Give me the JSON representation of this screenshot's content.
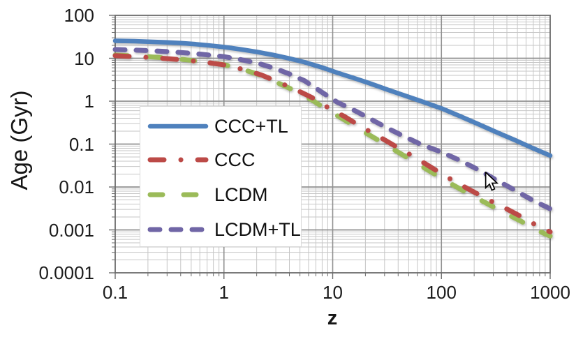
{
  "chart_data": {
    "type": "line",
    "xlabel": "z",
    "ylabel": "Age (Gyr)",
    "x_scale": "log",
    "y_scale": "log",
    "xlim": [
      0.1,
      1000
    ],
    "ylim": [
      0.0001,
      100
    ],
    "grid": "log major and minor gridlines, both axes",
    "legend_position": "upper-left inside plot",
    "x_ticks": [
      {
        "value": 0.1,
        "label": "0.1"
      },
      {
        "value": 1,
        "label": "1"
      },
      {
        "value": 10,
        "label": "10"
      },
      {
        "value": 100,
        "label": "100"
      },
      {
        "value": 1000,
        "label": "1000"
      }
    ],
    "y_ticks": [
      {
        "value": 100,
        "label": "100"
      },
      {
        "value": 10,
        "label": "10"
      },
      {
        "value": 1,
        "label": "1"
      },
      {
        "value": 0.1,
        "label": "0.1"
      },
      {
        "value": 0.01,
        "label": "0.01"
      },
      {
        "value": 0.001,
        "label": "0.001"
      },
      {
        "value": 0.0001,
        "label": "0.0001"
      }
    ],
    "series": [
      {
        "name": "CCC+TL",
        "color": "#4f81bd",
        "style": "solid",
        "dash_pattern": "",
        "points": [
          [
            0.1,
            25.5
          ],
          [
            0.15,
            25.0
          ],
          [
            0.2,
            24.4
          ],
          [
            0.3,
            23.4
          ],
          [
            0.4,
            22.5
          ],
          [
            0.55,
            21.3
          ],
          [
            0.75,
            19.8
          ],
          [
            1,
            18.3
          ],
          [
            1.4,
            16.3
          ],
          [
            2,
            14.1
          ],
          [
            3,
            11.6
          ],
          [
            4,
            9.9
          ],
          [
            5.5,
            8.1
          ],
          [
            8,
            6.1
          ],
          [
            11,
            4.6
          ],
          [
            16,
            3.4
          ],
          [
            22,
            2.6
          ],
          [
            32,
            1.85
          ],
          [
            45,
            1.38
          ],
          [
            65,
            1.0
          ],
          [
            100,
            0.68
          ],
          [
            150,
            0.44
          ],
          [
            220,
            0.29
          ],
          [
            320,
            0.19
          ],
          [
            470,
            0.125
          ],
          [
            680,
            0.082
          ],
          [
            1000,
            0.054
          ]
        ]
      },
      {
        "name": "CCC",
        "color": "#bc4a47",
        "style": "dash-dot",
        "dash_pattern": "20 24 0.1 24",
        "points": [
          [
            0.1,
            11.5
          ],
          [
            0.2,
            10.5
          ],
          [
            0.3,
            9.8
          ],
          [
            0.45,
            9.0
          ],
          [
            0.65,
            8.2
          ],
          [
            1,
            7.0
          ],
          [
            1.5,
            5.5
          ],
          [
            2.2,
            4.1
          ],
          [
            3.2,
            2.75
          ],
          [
            4.5,
            1.9
          ],
          [
            6.5,
            1.2
          ],
          [
            9,
            0.72
          ],
          [
            13,
            0.43
          ],
          [
            18,
            0.26
          ],
          [
            26,
            0.155
          ],
          [
            38,
            0.088
          ],
          [
            55,
            0.052
          ],
          [
            80,
            0.029
          ],
          [
            115,
            0.0165
          ],
          [
            170,
            0.0095
          ],
          [
            250,
            0.0056
          ],
          [
            370,
            0.0034
          ],
          [
            550,
            0.002
          ],
          [
            780,
            0.0012
          ],
          [
            1000,
            0.0009
          ]
        ]
      },
      {
        "name": "LCDM",
        "color": "#9bbb59",
        "style": "dash",
        "dash_pattern": "18 30",
        "points": [
          [
            0.1,
            11.9
          ],
          [
            0.2,
            10.9
          ],
          [
            0.3,
            10.1
          ],
          [
            0.45,
            9.2
          ],
          [
            0.65,
            8.3
          ],
          [
            1,
            7.1
          ],
          [
            1.5,
            5.5
          ],
          [
            2.2,
            4.0
          ],
          [
            3.2,
            2.6
          ],
          [
            4.5,
            1.75
          ],
          [
            6.5,
            1.05
          ],
          [
            9,
            0.62
          ],
          [
            13,
            0.36
          ],
          [
            18,
            0.215
          ],
          [
            26,
            0.125
          ],
          [
            38,
            0.07
          ],
          [
            55,
            0.04
          ],
          [
            80,
            0.0225
          ],
          [
            115,
            0.013
          ],
          [
            170,
            0.0074
          ],
          [
            250,
            0.0044
          ],
          [
            370,
            0.0026
          ],
          [
            550,
            0.00155
          ],
          [
            780,
            0.00095
          ],
          [
            1000,
            0.00072
          ]
        ]
      },
      {
        "name": "LCDM+TL",
        "color": "#7066a6",
        "style": "dash",
        "dash_pattern": "14 16",
        "points": [
          [
            0.1,
            16.0
          ],
          [
            0.15,
            15.5
          ],
          [
            0.2,
            15.1
          ],
          [
            0.3,
            14.3
          ],
          [
            0.4,
            13.6
          ],
          [
            0.55,
            12.8
          ],
          [
            0.75,
            11.8
          ],
          [
            1,
            10.9
          ],
          [
            1.4,
            9.4
          ],
          [
            2,
            7.8
          ],
          [
            3,
            5.7
          ],
          [
            4,
            4.3
          ],
          [
            5.5,
            3.0
          ],
          [
            8,
            1.6
          ],
          [
            11,
            0.95
          ],
          [
            16,
            0.6
          ],
          [
            22,
            0.39
          ],
          [
            32,
            0.235
          ],
          [
            45,
            0.152
          ],
          [
            65,
            0.098
          ],
          [
            100,
            0.065
          ],
          [
            150,
            0.041
          ],
          [
            220,
            0.025
          ],
          [
            320,
            0.0145
          ],
          [
            470,
            0.0085
          ],
          [
            680,
            0.005
          ],
          [
            1000,
            0.0031
          ]
        ]
      }
    ]
  },
  "legend": {
    "items": [
      {
        "label": "CCC+TL"
      },
      {
        "label": "CCC"
      },
      {
        "label": "LCDM"
      },
      {
        "label": "LCDM+TL"
      }
    ]
  },
  "palette": {
    "minor_grid": "#c6c6c6",
    "major_grid": "#909090",
    "axis_line": "#6b6b6b",
    "text": "#1c1c1c",
    "plot_background": "#ffffff"
  },
  "cursor": {
    "visible": true,
    "tip_x": 697,
    "tip_y": 248
  }
}
